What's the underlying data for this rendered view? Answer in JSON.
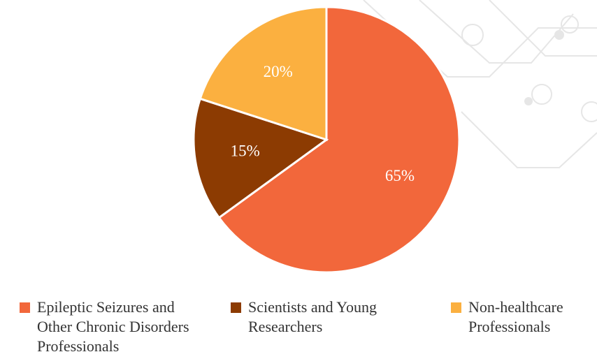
{
  "chart_data": {
    "type": "pie",
    "categories": [
      "Epileptic Seizures and Other Chronic Disorders Professionals",
      "Scientists and Young Researchers",
      "Non-healthcare Professionals"
    ],
    "values": [
      65,
      15,
      20
    ],
    "value_labels": [
      "65%",
      "15%",
      "20%"
    ],
    "colors": [
      "#f2673b",
      "#8c3b02",
      "#fbb040"
    ]
  }
}
